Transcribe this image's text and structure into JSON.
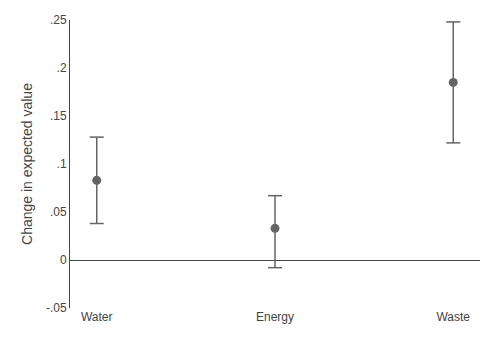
{
  "chart_data": {
    "type": "scatter",
    "ylabel": "Change in expected value",
    "categories": [
      "Water",
      "Energy",
      "Waste"
    ],
    "values": [
      0.083,
      0.033,
      0.185
    ],
    "ci_lower": [
      0.038,
      -0.008,
      0.122
    ],
    "ci_upper": [
      0.128,
      0.067,
      0.248
    ],
    "color": "#656565",
    "ylim": [
      -0.05,
      0.25
    ],
    "yticks": [
      {
        "value": -0.05,
        "label": "-.05"
      },
      0,
      {
        "value": 0.05,
        "label": ".05"
      },
      {
        "value": 0.1,
        "label": ".1"
      },
      {
        "value": 0.15,
        "label": ".15"
      },
      {
        "value": 0.2,
        "label": ".2"
      },
      {
        "value": 0.25,
        "label": ".25"
      }
    ],
    "grid": false
  }
}
